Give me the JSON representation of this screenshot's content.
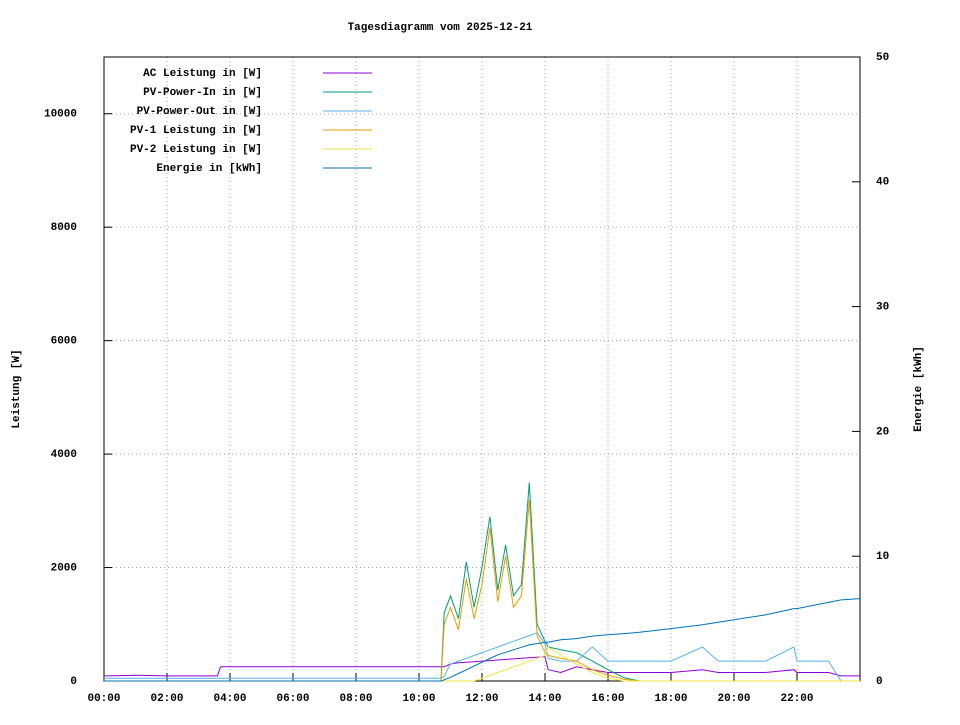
{
  "chart_data": {
    "type": "line",
    "title": "Tagesdiagramm vom 2025-12-21",
    "y_label": "Leistung [W]",
    "y2_label": "Energie [kWh]",
    "xlim": [
      0,
      24
    ],
    "ylim": [
      0,
      11000
    ],
    "y2lim": [
      0,
      50
    ],
    "xticks": [
      {
        "value": 0,
        "label": "00:00"
      },
      {
        "value": 2,
        "label": "02:00"
      },
      {
        "value": 4,
        "label": "04:00"
      },
      {
        "value": 6,
        "label": "06:00"
      },
      {
        "value": 8,
        "label": "08:00"
      },
      {
        "value": 10,
        "label": "10:00"
      },
      {
        "value": 12,
        "label": "12:00"
      },
      {
        "value": 14,
        "label": "14:00"
      },
      {
        "value": 16,
        "label": "16:00"
      },
      {
        "value": 18,
        "label": "18:00"
      },
      {
        "value": 20,
        "label": "20:00"
      },
      {
        "value": 22,
        "label": "22:00"
      }
    ],
    "yticks": [
      0,
      2000,
      4000,
      6000,
      8000,
      10000
    ],
    "y2ticks": [
      0,
      10,
      20,
      30,
      40,
      50
    ],
    "grid": true,
    "legend": "top-left",
    "x": [
      0,
      1,
      2,
      3,
      3.6,
      3.7,
      5,
      8,
      10.7,
      10.8,
      11,
      11.25,
      11.5,
      11.75,
      12,
      12.25,
      12.5,
      12.75,
      13,
      13.25,
      13.5,
      13.75,
      14,
      14.1,
      14.5,
      15,
      15.5,
      16,
      16.5,
      17,
      18,
      19,
      19.5,
      20,
      21,
      21.9,
      22,
      23,
      23.4,
      24
    ],
    "series": [
      {
        "name": "AC Leistung in [W]",
        "color": "#9400d3",
        "values": [
          90,
          100,
          90,
          90,
          90,
          250,
          250,
          250,
          250,
          250,
          300,
          320,
          330,
          340,
          350,
          360,
          370,
          380,
          390,
          400,
          410,
          420,
          430,
          200,
          150,
          250,
          200,
          150,
          150,
          150,
          150,
          200,
          150,
          150,
          150,
          200,
          150,
          150,
          90,
          90
        ]
      },
      {
        "name": "PV-Power-In in [W]",
        "color": "#009e73",
        "values": [
          0,
          0,
          0,
          0,
          0,
          0,
          0,
          0,
          0,
          1200,
          1500,
          1100,
          2100,
          1300,
          2000,
          2900,
          1600,
          2400,
          1500,
          1700,
          3500,
          1000,
          700,
          600,
          550,
          500,
          350,
          200,
          60,
          0,
          0,
          0,
          0,
          0,
          0,
          0,
          0,
          0,
          0,
          0
        ]
      },
      {
        "name": "PV-Power-Out in [W]",
        "color": "#56b4e9",
        "values": [
          50,
          50,
          50,
          50,
          50,
          50,
          50,
          50,
          50,
          80,
          300,
          350,
          400,
          450,
          500,
          550,
          600,
          650,
          700,
          750,
          800,
          850,
          650,
          400,
          350,
          350,
          600,
          350,
          350,
          350,
          350,
          600,
          350,
          350,
          350,
          600,
          350,
          350,
          0,
          0
        ]
      },
      {
        "name": "PV-1 Leistung in [W]",
        "color": "#e69f00",
        "values": [
          0,
          0,
          0,
          0,
          0,
          0,
          0,
          0,
          0,
          1000,
          1300,
          900,
          1800,
          1100,
          1700,
          2700,
          1400,
          2200,
          1300,
          1500,
          3200,
          800,
          500,
          450,
          400,
          350,
          200,
          100,
          30,
          0,
          0,
          0,
          0,
          0,
          0,
          0,
          0,
          0,
          0,
          0
        ]
      },
      {
        "name": "PV-2 Leistung in [W]",
        "color": "#f0e442",
        "values": [
          0,
          0,
          0,
          0,
          0,
          0,
          0,
          0,
          0,
          0,
          0,
          0,
          0,
          0,
          50,
          100,
          150,
          200,
          250,
          300,
          350,
          400,
          450,
          600,
          450,
          300,
          150,
          50,
          0,
          0,
          0,
          0,
          0,
          0,
          0,
          0,
          0,
          0,
          0,
          0
        ]
      },
      {
        "name": "Energie in [kWh]",
        "color": "#0072b2",
        "axis": "y2",
        "values": [
          0,
          0,
          0,
          0,
          0,
          0,
          0,
          0,
          0,
          0.1,
          0.3,
          0.6,
          0.9,
          1.2,
          1.5,
          1.8,
          2.1,
          2.3,
          2.5,
          2.7,
          2.9,
          3.0,
          3.1,
          3.1,
          3.3,
          3.4,
          3.6,
          3.7,
          3.8,
          3.9,
          4.2,
          4.5,
          4.7,
          4.9,
          5.3,
          5.8,
          5.8,
          6.3,
          6.5,
          6.6
        ]
      }
    ]
  }
}
